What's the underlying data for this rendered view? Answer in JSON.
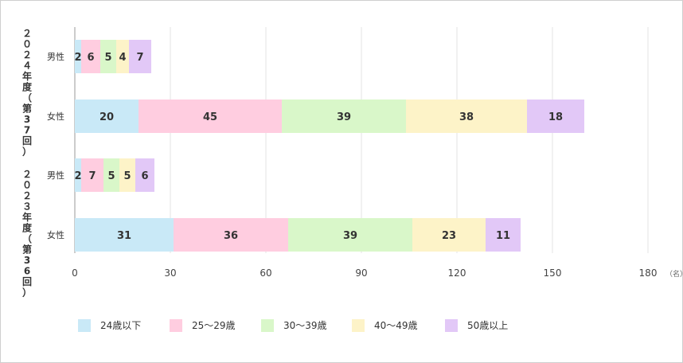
{
  "chart_data": {
    "type": "bar",
    "orientation": "horizontal",
    "stacked": true,
    "groups": [
      {
        "label": "２０２４年度（第37回）",
        "rows": [
          "男性",
          "女性"
        ]
      },
      {
        "label": "２０２３年度（第36回）",
        "rows": [
          "男性",
          "女性"
        ]
      }
    ],
    "categories": [
      "男性",
      "女性",
      "男性",
      "女性"
    ],
    "series": [
      {
        "name": "24歳以下",
        "color": "#c9e9f7",
        "values": [
          2,
          20,
          2,
          31
        ]
      },
      {
        "name": "25〜29歳",
        "color": "#ffcde0",
        "values": [
          6,
          45,
          7,
          36
        ]
      },
      {
        "name": "30〜39歳",
        "color": "#d9f7c9",
        "values": [
          5,
          39,
          5,
          39
        ]
      },
      {
        "name": "40〜49歳",
        "color": "#fdf3c8",
        "values": [
          4,
          38,
          5,
          23
        ]
      },
      {
        "name": "50歳以上",
        "color": "#e2c8f7",
        "values": [
          7,
          18,
          6,
          11
        ]
      }
    ],
    "xticks": [
      0,
      30,
      60,
      90,
      120,
      150,
      180
    ],
    "xlim": [
      0,
      180
    ],
    "unit": "（名）",
    "grid": true,
    "legend_position": "bottom"
  }
}
